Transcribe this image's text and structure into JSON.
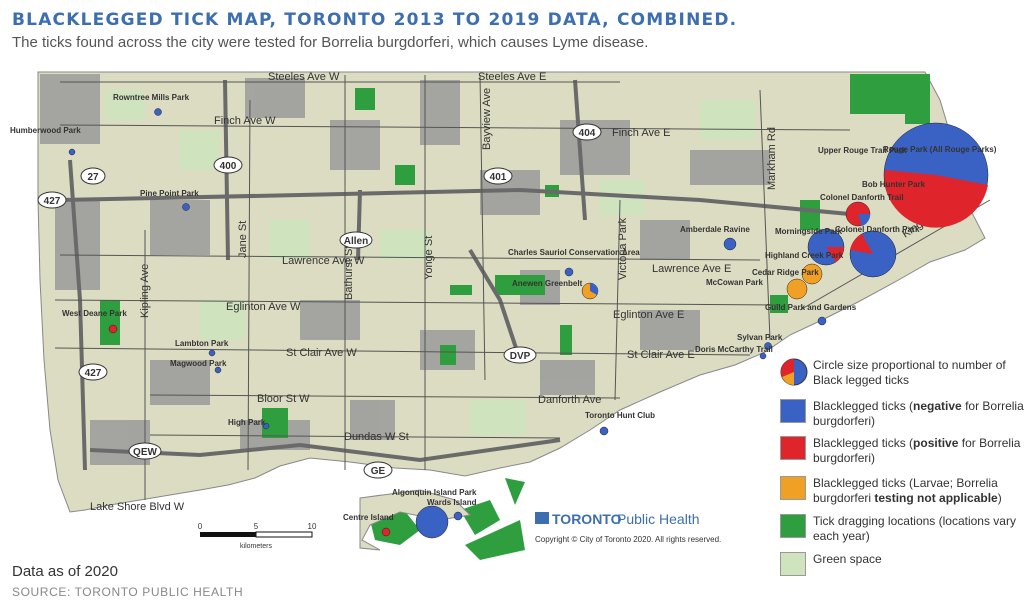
{
  "title": "BLACKLEGGED TICK MAP, TORONTO 2013 TO 2019 DATA, COMBINED.",
  "subtitle": "The ticks found across the city were tested for Borrelia burgdorferi, which causes Lyme disease.",
  "colors": {
    "land": "#dcdcc2",
    "urban": "#9a9a9a",
    "lake": "#ffffff",
    "green_space": "#cfe3bf",
    "tick_drag": "#2e9e3e",
    "negative": "#3a62c4",
    "positive": "#e0242b",
    "not_applicable": "#f0a024",
    "road": "#555555",
    "title": "#3d6fb0"
  },
  "streets": {
    "steeles_w": "Steeles Ave W",
    "steeles_e": "Steeles Ave E",
    "finch_w": "Finch Ave W",
    "finch_e": "Finch Ave E",
    "lawrence_w": "Lawrence Ave W",
    "lawrence_e": "Lawrence Ave E",
    "eglinton_w": "Eglinton Ave W",
    "eglinton_e": "Eglinton Ave E",
    "stclair_w": "St Clair Ave W",
    "stclair_e": "St Clair Ave E",
    "bloor_w": "Bloor St W",
    "dundas_w": "Dundas W St",
    "danforth": "Danforth Ave",
    "lakeshore_w": "Lake Shore Blvd W",
    "kipling": "Kipling Ave",
    "jane": "Jane St",
    "bathurst": "Bathurst St",
    "yonge": "Yonge St",
    "bayview": "Bayview Ave",
    "victoria_park": "Victoria Park",
    "markham": "Markham Rd",
    "kingston": "Kingston Rd"
  },
  "highways": {
    "h27": "27",
    "h427": "427",
    "h427b": "427",
    "h400": "400",
    "h401": "401",
    "h404": "404",
    "allen": "Allen",
    "dvp": "DVP",
    "qew": "QEW",
    "ge": "GE"
  },
  "parks": {
    "humberwood": "Humberwood Park",
    "rowntree": "Rowntree Mills Park",
    "pine_point": "Pine Point Park",
    "west_deane": "West Deane Park",
    "lambton": "Lambton Park",
    "magwood": "Magwood Park",
    "high_park": "High Park",
    "centre_island": "Centre Island",
    "algonquin": "Algonquin Island Park",
    "wards": "Wards Island",
    "charles_sauriol": "Charles Sauriol Conservation Area",
    "anewen": "Anewen Greenbelt",
    "amberdale": "Amberdale Ravine",
    "mccowan": "McCowan Park",
    "toronto_hunt": "Toronto Hunt Club",
    "upper_rouge": "Upper Rouge Trail Park",
    "rouge_all": "Rouge Park (All Rouge Parks)",
    "bob_hunter": "Bob Hunter Park",
    "colonel_danforth_trail": "Colonel Danforth Trail",
    "morningside": "Morningside Park",
    "colonel_danforth_park": "Colonel Danforth Park",
    "highland_creek": "Highland Creek Park",
    "cedar_ridge": "Cedar Ridge Park",
    "guild": "Guild Park and Gardens",
    "sylvan": "Sylvan Park",
    "doris": "Doris McCarthy Trail"
  },
  "scale": {
    "t0": "0",
    "t5": "5",
    "t10": "10",
    "unit": "kilometers"
  },
  "legend": {
    "size_note": "Circle size proportional to number of Black legged ticks",
    "negative_pre": "Blacklegged ticks (",
    "negative_bold": "negative",
    "negative_post": " for Borrelia burgdorferi)",
    "positive_pre": "Blacklegged ticks (",
    "positive_bold": "positive",
    "positive_post": " for Borrelia burgdorferi)",
    "larvae_pre": "Blacklegged ticks (Larvae; Borrelia burgdorferi ",
    "larvae_bold": "testing not applicable",
    "larvae_post": ")",
    "drag": "Tick dragging locations (locations vary each year)",
    "green": "Green space"
  },
  "brand": {
    "toronto": "TORONTO",
    "public_health": "Public Health",
    "copyright": "Copyright © City of Toronto 2020. All rights reserved."
  },
  "footer": {
    "data_as_of": "Data as of 2020",
    "source": "SOURCE: TORONTO PUBLIC HEALTH"
  }
}
